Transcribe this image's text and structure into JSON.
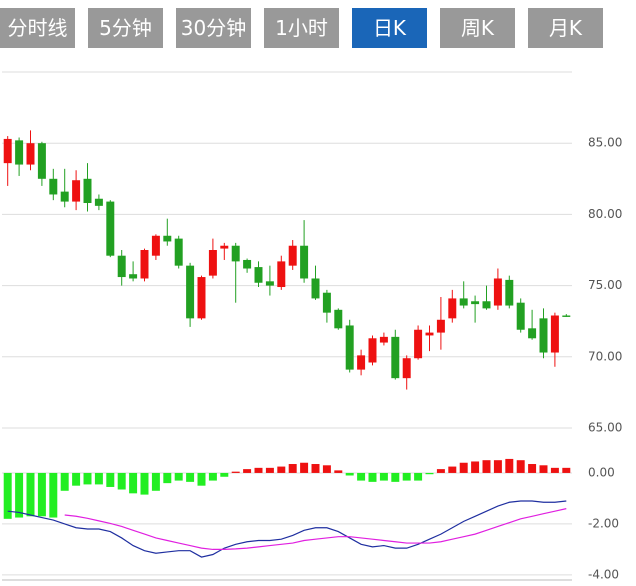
{
  "tabs": [
    "分时线",
    "5分钟",
    "30分钟",
    "1小时",
    "日K",
    "周K",
    "月K"
  ],
  "chart_data": [
    {
      "type": "candlestick",
      "open": [
        83.6,
        85.2,
        83.5,
        85.0,
        82.5,
        81.6,
        80.9,
        82.5,
        81.1,
        80.9,
        77.1,
        75.8,
        75.5,
        77.1,
        78.5,
        78.3,
        76.4,
        72.7,
        75.7,
        77.6,
        77.8,
        76.8,
        76.3,
        75.3,
        74.9,
        76.4,
        77.8,
        75.5,
        74.5,
        73.3,
        72.2,
        69.1,
        69.6,
        71.0,
        71.4,
        68.5,
        69.9,
        71.5,
        71.7,
        72.7,
        74.1,
        73.9,
        73.9,
        73.6,
        75.4,
        73.8,
        72.0,
        72.7,
        70.3,
        72.9
      ],
      "high": [
        85.5,
        85.4,
        85.9,
        85.1,
        83.2,
        83.2,
        83.1,
        83.6,
        81.4,
        81.0,
        77.5,
        76.7,
        77.6,
        78.6,
        79.7,
        78.5,
        76.6,
        75.7,
        78.3,
        78.0,
        78.0,
        76.9,
        76.7,
        76.4,
        77.1,
        78.2,
        79.6,
        76.4,
        74.7,
        73.4,
        72.6,
        70.5,
        71.5,
        71.7,
        71.9,
        70.1,
        72.2,
        72.2,
        74.2,
        74.7,
        75.3,
        74.3,
        75.0,
        76.2,
        75.7,
        74.1,
        73.3,
        73.4,
        73.1,
        73.0
      ],
      "low": [
        82.0,
        82.7,
        83.1,
        82.0,
        81.0,
        80.5,
        80.3,
        80.2,
        80.3,
        77.0,
        75.0,
        75.3,
        75.3,
        76.8,
        77.8,
        76.2,
        72.1,
        72.6,
        75.5,
        76.8,
        73.8,
        75.9,
        74.9,
        74.3,
        74.7,
        76.1,
        75.2,
        74.0,
        72.4,
        71.9,
        68.9,
        68.7,
        69.4,
        70.8,
        68.4,
        67.7,
        69.8,
        70.4,
        70.5,
        72.4,
        73.4,
        72.4,
        73.3,
        73.3,
        73.4,
        71.7,
        71.2,
        69.9,
        69.3,
        72.8
      ],
      "close": [
        85.3,
        83.5,
        85.0,
        82.5,
        81.4,
        80.9,
        82.4,
        80.8,
        80.6,
        77.1,
        75.6,
        75.5,
        77.5,
        78.5,
        78.1,
        76.4,
        72.7,
        75.6,
        77.5,
        77.8,
        76.7,
        76.2,
        75.2,
        75.0,
        76.7,
        77.8,
        75.5,
        74.1,
        73.1,
        72.0,
        69.1,
        70.1,
        71.3,
        71.4,
        68.5,
        69.9,
        71.9,
        71.7,
        72.6,
        74.1,
        73.6,
        73.7,
        73.4,
        75.5,
        73.6,
        71.9,
        71.3,
        70.3,
        72.9,
        72.8
      ],
      "up_color": "#ee1111",
      "down_color": "#22a022",
      "ylim": [
        65,
        90
      ],
      "yticks": [
        {
          "value": 65,
          "label": "65.00"
        },
        {
          "value": 70,
          "label": "70.00"
        },
        {
          "value": 75,
          "label": "75.00"
        },
        {
          "value": 80,
          "label": "80.00"
        },
        {
          "value": 85,
          "label": "85.00"
        }
      ],
      "grid": true
    },
    {
      "type": "macd",
      "histogram": [
        -1.8,
        -1.75,
        -1.7,
        -1.7,
        -1.75,
        -0.7,
        -0.5,
        -0.45,
        -0.45,
        -0.55,
        -0.65,
        -0.8,
        -0.85,
        -0.7,
        -0.4,
        -0.3,
        -0.35,
        -0.5,
        -0.3,
        -0.15,
        0.05,
        0.15,
        0.2,
        0.2,
        0.25,
        0.35,
        0.4,
        0.35,
        0.3,
        0.1,
        -0.1,
        -0.3,
        -0.35,
        -0.3,
        -0.35,
        -0.3,
        -0.3,
        -0.05,
        0.15,
        0.25,
        0.4,
        0.45,
        0.5,
        0.5,
        0.55,
        0.5,
        0.35,
        0.3,
        0.2,
        0.2
      ],
      "up_color": "#ee1111",
      "down_color": "#22ee22",
      "series": [
        {
          "color": "#1f2fa0",
          "values": [
            -1.5,
            -1.55,
            -1.65,
            -1.75,
            -1.85,
            -2.0,
            -2.15,
            -2.2,
            -2.2,
            -2.3,
            -2.55,
            -2.85,
            -3.05,
            -3.15,
            -3.1,
            -3.05,
            -3.05,
            -3.3,
            -3.2,
            -2.95,
            -2.8,
            -2.7,
            -2.65,
            -2.65,
            -2.6,
            -2.45,
            -2.25,
            -2.15,
            -2.15,
            -2.3,
            -2.55,
            -2.8,
            -2.9,
            -2.85,
            -2.95,
            -2.95,
            -2.8,
            -2.6,
            -2.4,
            -2.15,
            -1.9,
            -1.7,
            -1.5,
            -1.3,
            -1.15,
            -1.1,
            -1.1,
            -1.15,
            -1.15,
            -1.1
          ]
        },
        {
          "color": "#e020e0",
          "values": [
            null,
            null,
            null,
            null,
            null,
            -1.65,
            -1.7,
            -1.78,
            -1.88,
            -1.98,
            -2.1,
            -2.25,
            -2.4,
            -2.55,
            -2.65,
            -2.75,
            -2.85,
            -2.95,
            -3.0,
            -3.0,
            -2.98,
            -2.95,
            -2.9,
            -2.85,
            -2.8,
            -2.75,
            -2.65,
            -2.6,
            -2.55,
            -2.5,
            -2.5,
            -2.55,
            -2.6,
            -2.65,
            -2.7,
            -2.75,
            -2.75,
            -2.75,
            -2.7,
            -2.6,
            -2.5,
            -2.4,
            -2.25,
            -2.1,
            -1.95,
            -1.8,
            -1.7,
            -1.6,
            -1.5,
            -1.4
          ]
        }
      ],
      "ylim": [
        -4.2,
        0.9
      ],
      "yticks": [
        {
          "value": 0,
          "label": "0.00"
        },
        {
          "value": -2,
          "label": "-2.00"
        },
        {
          "value": -4,
          "label": "-4.00"
        }
      ],
      "grid": true
    }
  ]
}
